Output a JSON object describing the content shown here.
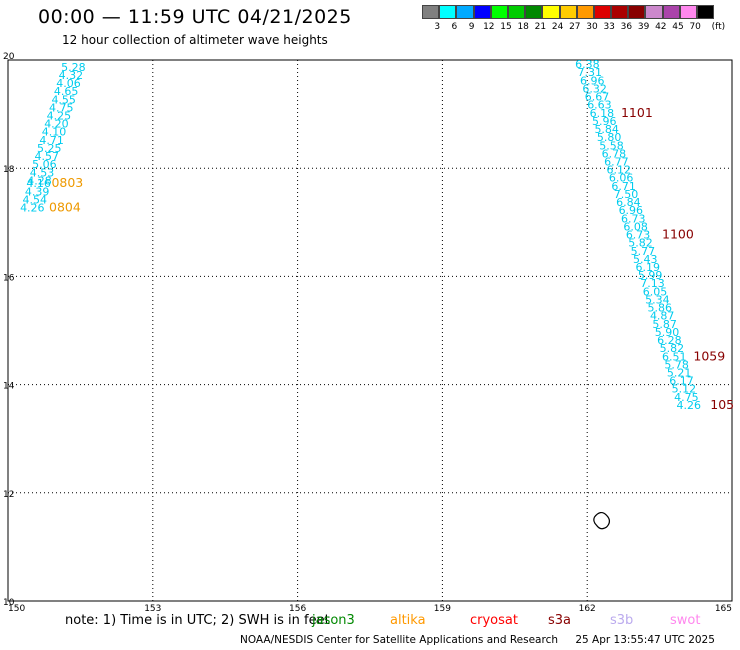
{
  "header": {
    "title": "00:00 — 11:59 UTC 04/21/2025",
    "subtitle": "12 hour collection of altimeter wave heights"
  },
  "colorbar": {
    "colors": [
      "#808080",
      "#00ffff",
      "#00aaff",
      "#0000ff",
      "#00ff00",
      "#00cc00",
      "#008800",
      "#ffff00",
      "#ffcc00",
      "#ff9900",
      "#dd0000",
      "#aa0000",
      "#880000",
      "#cc88cc",
      "#aa44aa",
      "#ff88ee",
      "#000000"
    ],
    "labels": [
      "3",
      "6",
      "9",
      "12",
      "15",
      "18",
      "21",
      "24",
      "27",
      "30",
      "33",
      "36",
      "39",
      "42",
      "45",
      "70",
      "(ft)"
    ]
  },
  "map": {
    "lon_range": [
      150,
      165
    ],
    "lat_range": [
      10,
      20
    ],
    "lon_ticks": [
      "150",
      "153",
      "156",
      "159",
      "162",
      "165"
    ],
    "lat_ticks": [
      "20",
      "18",
      "16",
      "14",
      "12",
      "10"
    ],
    "lon_values": [
      150,
      153,
      156,
      159,
      162,
      165
    ],
    "lat_values": [
      20,
      18,
      16,
      14,
      12,
      10
    ],
    "grid": true,
    "tracks": [
      {
        "name": "left",
        "color": "#00ccee",
        "points": [
          {
            "lon": 151.1,
            "lat": 19.8,
            "v": "5.28"
          },
          {
            "lon": 151.05,
            "lat": 19.65,
            "v": "4.32"
          },
          {
            "lon": 151.0,
            "lat": 19.5,
            "v": "4.06"
          },
          {
            "lon": 150.95,
            "lat": 19.35,
            "v": "4.65"
          },
          {
            "lon": 150.9,
            "lat": 19.2,
            "v": "4.55"
          },
          {
            "lon": 150.85,
            "lat": 19.05,
            "v": "4.75"
          },
          {
            "lon": 150.8,
            "lat": 18.9,
            "v": "4.25"
          },
          {
            "lon": 150.75,
            "lat": 18.75,
            "v": "4.20"
          },
          {
            "lon": 150.7,
            "lat": 18.6,
            "v": "4.10"
          },
          {
            "lon": 150.65,
            "lat": 18.45,
            "v": "4.71"
          },
          {
            "lon": 150.6,
            "lat": 18.3,
            "v": "5.25"
          },
          {
            "lon": 150.55,
            "lat": 18.15,
            "v": "4.57"
          },
          {
            "lon": 150.5,
            "lat": 18.0,
            "v": "5.06"
          },
          {
            "lon": 150.45,
            "lat": 17.85,
            "v": "4.53"
          },
          {
            "lon": 150.4,
            "lat": 17.7,
            "v": "4.28"
          },
          {
            "lon": 150.38,
            "lat": 17.65,
            "v": "4.16"
          },
          {
            "lon": 150.35,
            "lat": 17.5,
            "v": "4.39"
          },
          {
            "lon": 150.3,
            "lat": 17.35,
            "v": "4.54"
          },
          {
            "lon": 150.25,
            "lat": 17.2,
            "v": "4.26"
          }
        ]
      },
      {
        "name": "right",
        "color": "#00ccee",
        "points": [
          {
            "lon": 161.75,
            "lat": 19.85,
            "v": "6.38"
          },
          {
            "lon": 161.8,
            "lat": 19.7,
            "v": "7.31"
          },
          {
            "lon": 161.85,
            "lat": 19.55,
            "v": "6.96"
          },
          {
            "lon": 161.9,
            "lat": 19.4,
            "v": "6.32"
          },
          {
            "lon": 161.95,
            "lat": 19.25,
            "v": "6.67"
          },
          {
            "lon": 162.0,
            "lat": 19.1,
            "v": "6.63"
          },
          {
            "lon": 162.05,
            "lat": 18.95,
            "v": "6.18"
          },
          {
            "lon": 162.1,
            "lat": 18.8,
            "v": "5.96"
          },
          {
            "lon": 162.15,
            "lat": 18.65,
            "v": "5.84"
          },
          {
            "lon": 162.2,
            "lat": 18.5,
            "v": "5.80"
          },
          {
            "lon": 162.25,
            "lat": 18.35,
            "v": "5.58"
          },
          {
            "lon": 162.3,
            "lat": 18.2,
            "v": "6.78"
          },
          {
            "lon": 162.35,
            "lat": 18.05,
            "v": "6.77"
          },
          {
            "lon": 162.4,
            "lat": 17.9,
            "v": "6.12"
          },
          {
            "lon": 162.45,
            "lat": 17.75,
            "v": "6.06"
          },
          {
            "lon": 162.5,
            "lat": 17.6,
            "v": "6.71"
          },
          {
            "lon": 162.55,
            "lat": 17.45,
            "v": "7.50"
          },
          {
            "lon": 162.6,
            "lat": 17.3,
            "v": "6.84"
          },
          {
            "lon": 162.65,
            "lat": 17.15,
            "v": "6.96"
          },
          {
            "lon": 162.7,
            "lat": 17.0,
            "v": "6.73"
          },
          {
            "lon": 162.75,
            "lat": 16.85,
            "v": "6.08"
          },
          {
            "lon": 162.8,
            "lat": 16.7,
            "v": "6.73"
          },
          {
            "lon": 162.85,
            "lat": 16.55,
            "v": "5.82"
          },
          {
            "lon": 162.9,
            "lat": 16.4,
            "v": "5.77"
          },
          {
            "lon": 162.95,
            "lat": 16.25,
            "v": "5.43"
          },
          {
            "lon": 163.0,
            "lat": 16.1,
            "v": "6.19"
          },
          {
            "lon": 163.05,
            "lat": 15.95,
            "v": "5.99"
          },
          {
            "lon": 163.1,
            "lat": 15.8,
            "v": "7.13"
          },
          {
            "lon": 163.15,
            "lat": 15.65,
            "v": "6.05"
          },
          {
            "lon": 163.2,
            "lat": 15.5,
            "v": "5.34"
          },
          {
            "lon": 163.25,
            "lat": 15.35,
            "v": "5.86"
          },
          {
            "lon": 163.3,
            "lat": 15.2,
            "v": "4.87"
          },
          {
            "lon": 163.35,
            "lat": 15.05,
            "v": "5.87"
          },
          {
            "lon": 163.4,
            "lat": 14.9,
            "v": "5.90"
          },
          {
            "lon": 163.45,
            "lat": 14.75,
            "v": "6.28"
          },
          {
            "lon": 163.5,
            "lat": 14.6,
            "v": "5.82"
          },
          {
            "lon": 163.55,
            "lat": 14.45,
            "v": "6.51"
          },
          {
            "lon": 163.6,
            "lat": 14.3,
            "v": "5.78"
          },
          {
            "lon": 163.65,
            "lat": 14.15,
            "v": "5.21"
          },
          {
            "lon": 163.7,
            "lat": 14.0,
            "v": "6.17"
          },
          {
            "lon": 163.75,
            "lat": 13.85,
            "v": "5.12"
          },
          {
            "lon": 163.8,
            "lat": 13.7,
            "v": "4.75"
          },
          {
            "lon": 163.85,
            "lat": 13.55,
            "v": "4.26"
          }
        ]
      }
    ],
    "time_labels": [
      {
        "text": "0803",
        "color": "#ee9900",
        "lon": 150.9,
        "lat": 17.65
      },
      {
        "text": "0804",
        "color": "#ee9900",
        "lon": 150.85,
        "lat": 17.2
      },
      {
        "text": "1101",
        "color": "#880000",
        "lon": 162.7,
        "lat": 18.95
      },
      {
        "text": "1100",
        "color": "#880000",
        "lon": 163.55,
        "lat": 16.7
      },
      {
        "text": "1059",
        "color": "#880000",
        "lon": 164.2,
        "lat": 14.45
      },
      {
        "text": "105",
        "color": "#880000",
        "lon": 164.55,
        "lat": 13.55
      }
    ],
    "island": "island-outline"
  },
  "legend": {
    "note": "note: 1) Time is in UTC; 2) SWH is in feet",
    "satellites": [
      {
        "name": "jason3",
        "color": "#008800"
      },
      {
        "name": "altika",
        "color": "#ff9900"
      },
      {
        "name": "cryosat",
        "color": "#ff0000"
      },
      {
        "name": "s3a",
        "color": "#880000"
      },
      {
        "name": "s3b",
        "color": "#bbaaee"
      },
      {
        "name": "swot",
        "color": "#ff88ee"
      }
    ]
  },
  "footer": {
    "credit": "NOAA/NESDIS Center for Satellite Applications and Research",
    "timestamp": "25 Apr 13:55:47 UTC 2025"
  }
}
